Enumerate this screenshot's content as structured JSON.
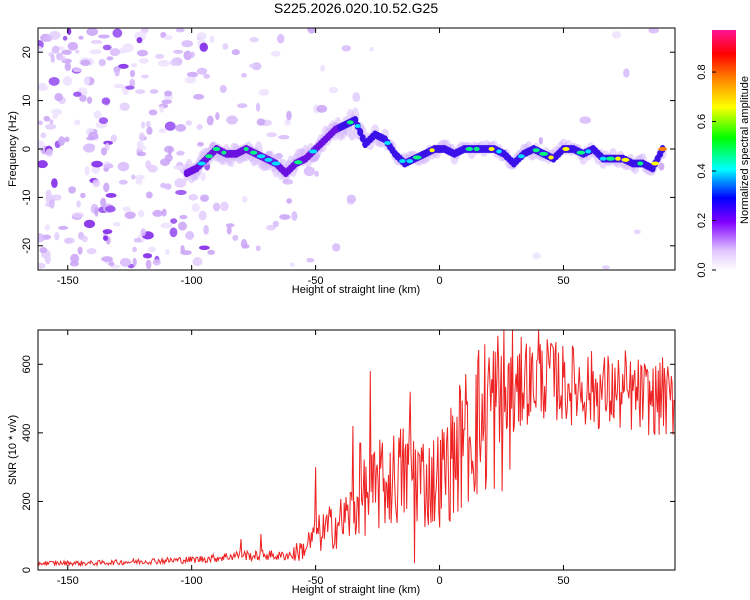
{
  "title": "S225.2026.020.10.52.G25",
  "chart_data": [
    {
      "type": "heatmap",
      "name": "spectrogram",
      "xlabel": "Height of straight line (km)",
      "ylabel": "Frequency (Hz)",
      "xlim": [
        -162,
        95
      ],
      "ylim": [
        -25,
        25
      ],
      "xticks": [
        -150,
        -100,
        -50,
        0,
        50
      ],
      "yticks": [
        -20,
        -10,
        0,
        10,
        20
      ],
      "colorbar": {
        "label": "Normalized spectral amplitude",
        "range": [
          0,
          0.97
        ],
        "ticks": [
          "0.0",
          "0.2",
          "0.4",
          "0.6",
          "0.8"
        ],
        "tick_values": [
          0,
          0.2,
          0.4,
          0.6,
          0.8
        ],
        "colors": [
          "#ffffff",
          "#e2c6ff",
          "#8000ff",
          "#0000ff",
          "#00ffff",
          "#00ff00",
          "#ffff00",
          "#ff8000",
          "#ff0000",
          "#ff1493"
        ]
      },
      "ridge": {
        "description": "dominant frequency track",
        "x": [
          -102,
          -98,
          -94,
          -90,
          -86,
          -82,
          -78,
          -74,
          -70,
          -66,
          -62,
          -58,
          -54,
          -50,
          -46,
          -42,
          -38,
          -34,
          -30,
          -26,
          -22,
          -18,
          -14,
          -10,
          -6,
          -2,
          2,
          6,
          10,
          14,
          18,
          22,
          26,
          30,
          34,
          38,
          42,
          46,
          50,
          54,
          58,
          62,
          66,
          70,
          74,
          78,
          82,
          86,
          90
        ],
        "y": [
          -5,
          -4,
          -2,
          0,
          -1,
          -1,
          0,
          -1,
          -2,
          -3,
          -5,
          -3,
          -2,
          0,
          2,
          4,
          5,
          6,
          1,
          3,
          2,
          -1,
          -3,
          -2,
          -1,
          0,
          0,
          -1,
          0,
          0,
          0,
          0,
          -1,
          -3,
          -1,
          0,
          -1,
          -2,
          0,
          0,
          -1,
          0,
          -2,
          -2,
          -2,
          -3,
          -3,
          -4,
          0
        ]
      }
    },
    {
      "type": "line",
      "name": "snr",
      "xlabel": "Height of straight line (km)",
      "ylabel": "SNR (10 * v/v)",
      "xlim": [
        -162,
        95
      ],
      "ylim": [
        0,
        700
      ],
      "xticks": [
        -150,
        -100,
        -50,
        0,
        50
      ],
      "yticks": [
        0,
        200,
        400,
        600
      ],
      "color": "#ee2222",
      "envelope": {
        "x": [
          -162,
          -140,
          -120,
          -100,
          -90,
          -80,
          -75,
          -70,
          -65,
          -60,
          -55,
          -50,
          -45,
          -40,
          -35,
          -30,
          -25,
          -20,
          -15,
          -10,
          -5,
          0,
          5,
          10,
          15,
          20,
          25,
          30,
          35,
          40,
          45,
          50,
          55,
          60,
          65,
          70,
          75,
          80,
          85,
          90,
          95
        ],
        "y": [
          20,
          20,
          25,
          30,
          35,
          45,
          40,
          45,
          40,
          45,
          60,
          100,
          120,
          140,
          170,
          220,
          230,
          260,
          280,
          290,
          250,
          270,
          320,
          380,
          430,
          460,
          480,
          500,
          540,
          560,
          560,
          540,
          540,
          530,
          520,
          520,
          510,
          510,
          500,
          495,
          490
        ]
      },
      "spikes": [
        {
          "x": -80,
          "y": 90
        },
        {
          "x": -72,
          "y": 105
        },
        {
          "x": -50,
          "y": 300
        },
        {
          "x": -35,
          "y": 420
        },
        {
          "x": -32,
          "y": 370
        },
        {
          "x": -28,
          "y": 580
        },
        {
          "x": -24,
          "y": 380
        },
        {
          "x": -12,
          "y": 520
        },
        {
          "x": -10,
          "y": 20
        },
        {
          "x": 10,
          "y": 410
        },
        {
          "x": 20,
          "y": 620
        },
        {
          "x": 33,
          "y": 680
        },
        {
          "x": 35,
          "y": 660
        },
        {
          "x": 40,
          "y": 700
        },
        {
          "x": 45,
          "y": 660
        },
        {
          "x": 75,
          "y": 640
        },
        {
          "x": 90,
          "y": 620
        }
      ]
    }
  ]
}
